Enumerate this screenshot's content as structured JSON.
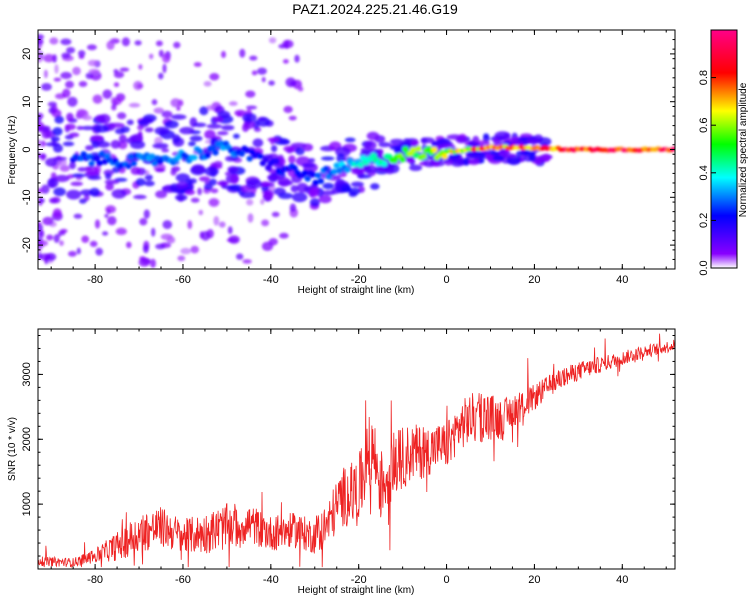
{
  "figure": {
    "title": "PAZ1.2024.225.21.46.G19"
  },
  "chart_data": [
    {
      "type": "heatmap",
      "xlabel": "Height of straight line (km)",
      "ylabel": "Frequency (Hz)",
      "xlim": [
        -93,
        52
      ],
      "ylim": [
        -25,
        25
      ],
      "x_ticks": [
        -80,
        -60,
        -40,
        -20,
        0,
        20,
        40
      ],
      "y_ticks": [
        -20,
        -10,
        0,
        10,
        20
      ],
      "colorbar": {
        "label": "Normalized spectral amplitude",
        "range": [
          0,
          1
        ],
        "ticks": [
          0.0,
          0.2,
          0.4,
          0.6,
          0.8
        ],
        "colormap": [
          "#ffffff",
          "#8800ff",
          "#0000ff",
          "#00ffff",
          "#00ff00",
          "#ffff00",
          "#ff0000",
          "#ff0088"
        ]
      },
      "ridge": {
        "x": [
          -80,
          -70,
          -60,
          -50,
          -40,
          -30,
          -25,
          -20,
          -15,
          -10,
          0,
          10,
          20,
          30,
          40,
          52
        ],
        "y": [
          -2,
          -2.5,
          -1.5,
          0.5,
          -3,
          -6,
          -4.5,
          -3,
          -2,
          -1,
          -0.5,
          0.5,
          0.3,
          0,
          0,
          0
        ],
        "amplitude": [
          0.25,
          0.3,
          0.3,
          0.3,
          0.2,
          0.25,
          0.35,
          0.4,
          0.45,
          0.55,
          0.65,
          0.8,
          0.85,
          0.9,
          0.9,
          0.9
        ]
      }
    },
    {
      "type": "line",
      "xlabel": "Height of straight line (km)",
      "ylabel": "SNR (10 * v/v)",
      "xlim": [
        -93,
        52
      ],
      "ylim": [
        0,
        3700
      ],
      "x_ticks": [
        -80,
        -60,
        -40,
        -20,
        0,
        20,
        40
      ],
      "y_ticks": [
        1000,
        2000,
        3000
      ],
      "series": [
        {
          "color": "#ee2222",
          "x": [
            -93,
            -85,
            -80,
            -75,
            -70,
            -65,
            -60,
            -55,
            -50,
            -45,
            -40,
            -35,
            -30,
            -27,
            -24,
            -20,
            -17,
            -15,
            -12,
            -10,
            -8,
            -5,
            -2,
            0,
            3,
            5,
            8,
            10,
            13,
            15,
            18,
            20,
            25,
            30,
            35,
            40,
            45,
            52
          ],
          "y": [
            120,
            100,
            200,
            350,
            550,
            650,
            500,
            550,
            650,
            700,
            550,
            600,
            500,
            700,
            1100,
            1200,
            1900,
            1300,
            1600,
            1700,
            1800,
            1800,
            1900,
            1900,
            2200,
            2300,
            2350,
            2350,
            2300,
            2450,
            2550,
            2650,
            2900,
            3050,
            3150,
            3250,
            3350,
            3450
          ],
          "noise": [
            80,
            80,
            120,
            250,
            350,
            350,
            300,
            350,
            400,
            350,
            300,
            300,
            300,
            400,
            500,
            600,
            700,
            600,
            600,
            550,
            500,
            450,
            400,
            400,
            400,
            450,
            450,
            400,
            350,
            300,
            250,
            220,
            180,
            160,
            140,
            120,
            110,
            100
          ]
        }
      ]
    }
  ]
}
